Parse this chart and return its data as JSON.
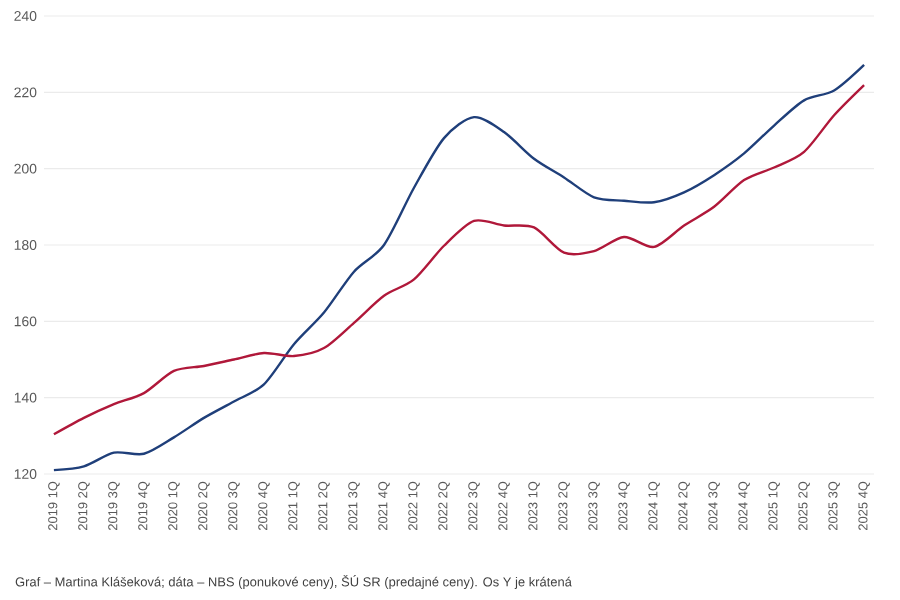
{
  "chart_data": {
    "type": "line",
    "categories": [
      "2019 1Q",
      "2019 2Q",
      "2019 3Q",
      "2019 4Q",
      "2020 1Q",
      "2020 2Q",
      "2020 3Q",
      "2020 4Q",
      "2021 1Q",
      "2021 2Q",
      "2021 3Q",
      "2021 4Q",
      "2022 1Q",
      "2022 2Q",
      "2022 3Q",
      "2022 4Q",
      "2023 1Q",
      "2023 2Q",
      "2023 3Q",
      "2023 4Q",
      "2024 1Q",
      "2024 2Q",
      "2024 3Q",
      "2024 4Q",
      "2025 1Q",
      "2025 2Q",
      "2025 3Q",
      "2025 4Q"
    ],
    "series": [
      {
        "color": "#1f3f7a",
        "values": [
          121,
          122,
          125.6,
          125.3,
          129.6,
          134.7,
          139,
          143.5,
          154,
          162.3,
          173,
          180,
          195,
          208,
          213.5,
          209.6,
          202.6,
          197.7,
          192.5,
          191.6,
          191.2,
          193.8,
          198.3,
          204,
          211.3,
          217.9,
          220.5,
          227.2
        ]
      },
      {
        "color": "#b0183a",
        "values": [
          130.4,
          134.7,
          138.3,
          141.2,
          147,
          148.3,
          150,
          151.7,
          150.9,
          153,
          159.6,
          166.7,
          171,
          179.8,
          186.3,
          185.1,
          184.6,
          178,
          178.4,
          182.1,
          179.5,
          185.1,
          190,
          197,
          200.3,
          204.4,
          214,
          221.9
        ]
      }
    ],
    "ylim": [
      120,
      240
    ],
    "yticks": [
      120,
      140,
      160,
      180,
      200,
      220,
      240
    ],
    "grid": "y",
    "line_style": "solid",
    "marker": "none",
    "annotations": [
      "Graf – Martina Klášeková; dáta – NBS (ponukové ceny), ŠÚ SR (predajné ceny). Os Y je krátená"
    ]
  }
}
